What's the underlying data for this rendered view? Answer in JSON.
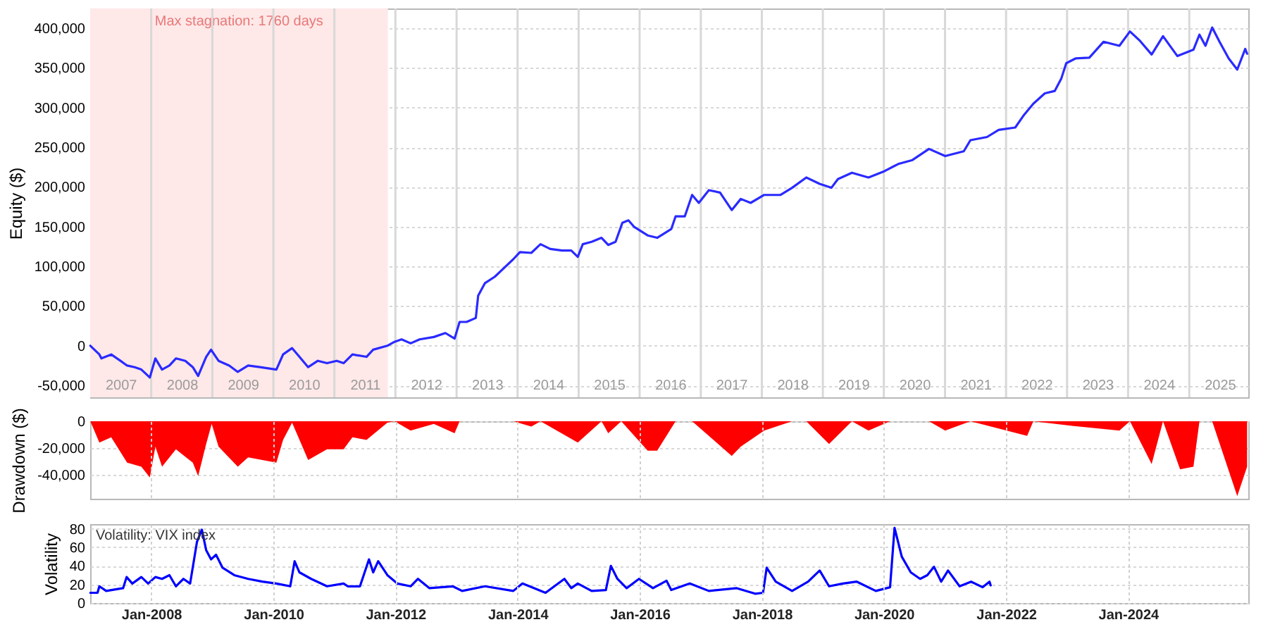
{
  "chart_data": [
    {
      "type": "line",
      "ylabel": "Equity ($)",
      "grid": true,
      "xlim": [
        "2007-01-01",
        "2025-12-20"
      ],
      "ylim": [
        -65000,
        425000
      ],
      "yticks": [
        {
          "value": -50000,
          "label": "-50,000"
        },
        0,
        {
          "value": 50000,
          "label": "50,000"
        },
        {
          "value": 100000,
          "label": "100,000"
        },
        {
          "value": 150000,
          "label": "150,000"
        },
        {
          "value": 200000,
          "label": "200,000"
        },
        {
          "value": 250000,
          "label": "250,000"
        },
        {
          "value": 300000,
          "label": "300,000"
        },
        {
          "value": 350000,
          "label": "350,000"
        },
        {
          "value": 400000,
          "label": "400,000"
        }
      ],
      "xticks": [
        {
          "value": "2007-07-02",
          "label": "2007"
        },
        {
          "value": "2008-01-01",
          "label": null
        },
        {
          "value": "2008-07-02",
          "label": "2008"
        },
        {
          "value": "2009-01-01",
          "label": null
        },
        {
          "value": "2009-07-02",
          "label": "2009"
        },
        {
          "value": "2010-01-01",
          "label": null
        },
        {
          "value": "2010-07-02",
          "label": "2010"
        },
        {
          "value": "2011-01-01",
          "label": null
        },
        {
          "value": "2011-07-02",
          "label": "2011"
        },
        {
          "value": "2012-01-01",
          "label": null
        },
        {
          "value": "2012-07-02",
          "label": "2012"
        },
        {
          "value": "2013-01-01",
          "label": null
        },
        {
          "value": "2013-07-02",
          "label": "2013"
        },
        {
          "value": "2014-01-01",
          "label": null
        },
        {
          "value": "2014-07-02",
          "label": "2014"
        },
        {
          "value": "2015-01-01",
          "label": null
        },
        {
          "value": "2015-07-02",
          "label": "2015"
        },
        {
          "value": "2016-01-01",
          "label": null
        },
        {
          "value": "2016-07-02",
          "label": "2016"
        },
        {
          "value": "2017-01-01",
          "label": null
        },
        {
          "value": "2017-07-02",
          "label": "2017"
        },
        {
          "value": "2018-01-01",
          "label": null
        },
        {
          "value": "2018-07-02",
          "label": "2018"
        },
        {
          "value": "2019-01-01",
          "label": null
        },
        {
          "value": "2019-07-02",
          "label": "2019"
        },
        {
          "value": "2020-01-01",
          "label": null
        },
        {
          "value": "2020-07-02",
          "label": "2020"
        },
        {
          "value": "2021-01-01",
          "label": null
        },
        {
          "value": "2021-07-02",
          "label": "2021"
        },
        {
          "value": "2022-01-01",
          "label": null
        },
        {
          "value": "2022-07-02",
          "label": "2022"
        },
        {
          "value": "2023-01-01",
          "label": null
        },
        {
          "value": "2023-07-02",
          "label": "2023"
        },
        {
          "value": "2024-01-01",
          "label": null
        },
        {
          "value": "2024-07-02",
          "label": "2024"
        },
        {
          "value": "2025-01-01",
          "label": null
        },
        {
          "value": "2025-07-02",
          "label": "2025"
        }
      ],
      "bands": [
        {
          "axis": "x",
          "from": "2007-01-01",
          "to": "2011-11-17",
          "label": "Max stagnation: 1760 days",
          "color": "#ffe8e8"
        }
      ],
      "series": [
        {
          "color": "#2a2aff",
          "x": [
            "2007-01-02",
            "2007-02-25",
            "2007-03-09",
            "2007-05-07",
            "2007-07-01",
            "2007-08-10",
            "2007-09-24",
            "2007-11-03",
            "2007-12-24",
            "2008-01-26",
            "2008-03-06",
            "2008-04-19",
            "2008-05-28",
            "2008-07-23",
            "2008-09-06",
            "2008-10-08",
            "2008-11-25",
            "2008-12-24",
            "2009-02-07",
            "2009-04-12",
            "2009-06-02",
            "2009-08-03",
            "2009-10-12",
            "2010-01-19",
            "2010-02-28",
            "2010-04-23",
            "2010-06-06",
            "2010-07-28",
            "2010-09-24",
            "2010-11-18",
            "2011-01-15",
            "2011-02-25",
            "2011-04-19",
            "2011-07-12",
            "2011-08-21",
            "2011-11-14",
            "2011-12-27",
            "2012-02-07",
            "2012-04-01",
            "2012-05-25",
            "2012-08-18",
            "2012-10-26",
            "2012-12-20",
            "2013-01-19",
            "2013-03-02",
            "2013-04-26",
            "2013-05-10",
            "2013-06-20",
            "2013-08-18",
            "2013-10-12",
            "2013-12-06",
            "2014-01-15",
            "2014-03-24",
            "2014-05-18",
            "2014-07-15",
            "2014-09-24",
            "2014-11-18",
            "2014-12-27",
            "2015-01-26",
            "2015-03-20",
            "2015-05-18",
            "2015-06-27",
            "2015-08-10",
            "2015-09-20",
            "2015-10-26",
            "2015-11-28",
            "2016-02-18",
            "2016-04-15",
            "2016-07-08",
            "2016-08-03",
            "2016-09-27",
            "2016-11-10",
            "2016-12-20",
            "2017-02-18",
            "2017-04-26",
            "2017-07-05",
            "2017-08-28",
            "2017-10-26",
            "2018-01-15",
            "2018-04-23",
            "2018-07-01",
            "2018-09-24",
            "2018-12-13",
            "2019-02-21",
            "2019-04-01",
            "2019-06-24",
            "2019-10-01",
            "2020-01-05",
            "2020-03-27",
            "2020-06-20",
            "2020-09-27",
            "2021-01-02",
            "2021-04-23",
            "2021-06-02",
            "2021-09-09",
            "2021-11-18",
            "2022-02-25",
            "2022-04-19",
            "2022-06-13",
            "2022-08-21",
            "2022-10-19",
            "2022-11-28",
            "2022-12-27",
            "2023-02-21",
            "2023-05-14",
            "2023-08-07",
            "2023-11-10",
            "2024-01-12",
            "2024-03-13",
            "2024-05-21",
            "2024-07-28",
            "2024-10-22",
            "2025-01-26",
            "2025-03-03",
            "2025-04-08",
            "2025-05-18",
            "2025-07-01",
            "2025-08-25",
            "2025-10-15",
            "2025-12-02",
            "2025-12-13"
          ],
          "values": [
            0,
            -11000,
            -16000,
            -11000,
            -19000,
            -25000,
            -27000,
            -30000,
            -40000,
            -16000,
            -30000,
            -25000,
            -16000,
            -19000,
            -27000,
            -38000,
            -14000,
            -5000,
            -19000,
            -25000,
            -33000,
            -25000,
            -27000,
            -30000,
            -11000,
            -3000,
            -14000,
            -27000,
            -19000,
            -22000,
            -19000,
            -22000,
            -11000,
            -14000,
            -5000,
            0,
            5000,
            8000,
            3000,
            8000,
            11000,
            16000,
            9000,
            30000,
            30000,
            35000,
            63000,
            79000,
            87000,
            98000,
            109000,
            118000,
            117000,
            128000,
            122000,
            120000,
            120000,
            112000,
            128000,
            131000,
            136000,
            127000,
            131000,
            155000,
            158000,
            150000,
            139000,
            136000,
            147000,
            163000,
            163000,
            190000,
            180000,
            196000,
            193000,
            171000,
            185000,
            180000,
            190000,
            190000,
            199000,
            212000,
            204000,
            199000,
            210000,
            218000,
            212000,
            220000,
            229000,
            234000,
            248000,
            239000,
            245000,
            259000,
            263000,
            272000,
            275000,
            291000,
            305000,
            318000,
            321000,
            337000,
            356000,
            362000,
            363000,
            383000,
            378000,
            396000,
            384000,
            367000,
            390000,
            365000,
            373000,
            392000,
            378000,
            401000,
            383000,
            362000,
            348000,
            374000,
            368000
          ]
        }
      ]
    },
    {
      "type": "area",
      "ylabel": "Drawdown ($)",
      "grid": true,
      "tick_labels": "y",
      "xlim": [
        "2007-01-01",
        "2025-12-20"
      ],
      "ylim": [
        -58000,
        0
      ],
      "yticks": [
        {
          "value": -40000,
          "label": "-40,000"
        },
        {
          "value": -20000,
          "label": "-20,000"
        },
        0
      ],
      "xticks": [
        {
          "value": "2008-01-01",
          "label": null
        },
        {
          "value": "2010-01-01",
          "label": null
        },
        {
          "value": "2012-01-01",
          "label": null
        },
        {
          "value": "2014-01-01",
          "label": null
        },
        {
          "value": "2016-01-01",
          "label": null
        },
        {
          "value": "2018-01-01",
          "label": null
        },
        {
          "value": "2020-01-01",
          "label": null
        },
        {
          "value": "2022-01-01",
          "label": null
        },
        {
          "value": "2024-01-01",
          "label": null
        }
      ],
      "series": [
        {
          "color": "#ff0000",
          "x": [
            "2007-01-02",
            "2007-02-25",
            "2007-05-07",
            "2007-08-10",
            "2007-11-03",
            "2007-12-24",
            "2008-01-26",
            "2008-03-06",
            "2008-05-28",
            "2008-09-06",
            "2008-10-08",
            "2008-11-25",
            "2008-12-28",
            "2009-02-07",
            "2009-06-02",
            "2009-08-03",
            "2010-01-19",
            "2010-02-28",
            "2010-04-23",
            "2010-07-28",
            "2010-11-18",
            "2011-02-25",
            "2011-04-19",
            "2011-07-12",
            "2011-11-14",
            "2011-12-27",
            "2012-04-01",
            "2012-08-18",
            "2012-12-20",
            "2013-01-19",
            "2013-12-06",
            "2014-03-24",
            "2014-05-18",
            "2014-12-27",
            "2015-05-18",
            "2015-06-27",
            "2015-09-13",
            "2016-02-18",
            "2016-04-15",
            "2016-08-03",
            "2016-11-10",
            "2017-07-05",
            "2017-08-28",
            "2018-01-15",
            "2018-07-01",
            "2018-09-24",
            "2019-02-07",
            "2019-06-24",
            "2019-10-01",
            "2020-02-07",
            "2020-09-27",
            "2021-01-02",
            "2021-06-02",
            "2022-05-07",
            "2022-06-13",
            "2023-03-14",
            "2023-11-10",
            "2024-01-12",
            "2024-05-21",
            "2024-07-28",
            "2024-11-07",
            "2025-01-26",
            "2025-03-03",
            "2025-05-18",
            "2025-10-15",
            "2025-12-13"
          ],
          "values": [
            0,
            -16000,
            -12000,
            -31000,
            -34000,
            -42000,
            -19000,
            -34000,
            -21000,
            -31000,
            -41000,
            -17000,
            -2000,
            -19000,
            -34000,
            -27000,
            -31000,
            -14000,
            -1000,
            -29000,
            -21000,
            -21000,
            -12000,
            -14000,
            -1000,
            0,
            -7000,
            -2000,
            -9000,
            0,
            0,
            -4000,
            0,
            -16000,
            0,
            -9000,
            0,
            -22000,
            -22000,
            0,
            0,
            -26000,
            -19000,
            -7000,
            0,
            0,
            -17000,
            0,
            -7000,
            0,
            0,
            -7000,
            0,
            -11000,
            0,
            -4000,
            -7000,
            0,
            -32000,
            0,
            -36000,
            -34000,
            0,
            0,
            -56000,
            -34000
          ]
        }
      ]
    },
    {
      "type": "line",
      "ylabel": "Volatility",
      "grid": true,
      "annotations": [
        "Volatility: VIX index"
      ],
      "xlim": [
        "2007-01-01",
        "2025-12-20"
      ],
      "ylim": [
        0,
        85
      ],
      "yticks": [
        0,
        20,
        40,
        60,
        80
      ],
      "xticks": [
        {
          "value": "2008-01-01",
          "label": "Jan-2008"
        },
        {
          "value": "2010-01-01",
          "label": "Jan-2010"
        },
        {
          "value": "2012-01-01",
          "label": "Jan-2012"
        },
        {
          "value": "2014-01-01",
          "label": "Jan-2014"
        },
        {
          "value": "2016-01-01",
          "label": "Jan-2016"
        },
        {
          "value": "2018-01-01",
          "label": "Jan-2018"
        },
        {
          "value": "2020-01-01",
          "label": "Jan-2020"
        },
        {
          "value": "2022-01-01",
          "label": "Jan-2022"
        },
        {
          "value": "2024-01-01",
          "label": "Jan-2024"
        }
      ],
      "series": [
        {
          "color": "#0000ff",
          "x": [
            "2007-01-02",
            "2007-02-14",
            "2007-02-25",
            "2007-04-07",
            "2007-07-17",
            "2007-08-07",
            "2007-09-10",
            "2007-11-03",
            "2007-12-14",
            "2008-01-26",
            "2008-03-06",
            "2008-04-19",
            "2008-05-28",
            "2008-07-12",
            "2008-08-21",
            "2008-10-01",
            "2008-10-30",
            "2008-11-25",
            "2008-12-24",
            "2009-01-23",
            "2009-03-03",
            "2009-05-12",
            "2009-08-03",
            "2009-10-27",
            "2010-01-19",
            "2010-04-12",
            "2010-05-08",
            "2010-06-06",
            "2010-08-15",
            "2010-11-18",
            "2011-02-25",
            "2011-03-22",
            "2011-06-03",
            "2011-07-27",
            "2011-08-21",
            "2011-09-20",
            "2011-11-14",
            "2012-01-12",
            "2012-04-01",
            "2012-05-15",
            "2012-07-23",
            "2012-12-09",
            "2013-02-03",
            "2013-06-20",
            "2013-12-06",
            "2014-01-30",
            "2014-06-17",
            "2014-10-08",
            "2014-11-18",
            "2014-12-27",
            "2015-03-20",
            "2015-06-13",
            "2015-07-13",
            "2015-08-21",
            "2015-10-15",
            "2015-12-28",
            "2016-03-21",
            "2016-06-10",
            "2016-07-08",
            "2016-10-27",
            "2017-02-18",
            "2017-08-04",
            "2017-11-22",
            "2018-01-08",
            "2018-01-30",
            "2018-03-25",
            "2018-07-01",
            "2018-10-05",
            "2018-12-13",
            "2019-02-07",
            "2019-05-01",
            "2019-07-23",
            "2019-11-14",
            "2020-02-07",
            "2020-03-05",
            "2020-04-17",
            "2020-06-10",
            "2020-08-05",
            "2020-09-17",
            "2020-10-27",
            "2020-12-09",
            "2021-01-19",
            "2021-03-29",
            "2021-06-06",
            "2021-08-14",
            "2021-09-24",
            "2021-10-01"
          ],
          "values": [
            11,
            11,
            18,
            13,
            16,
            28,
            21,
            28,
            21,
            28,
            26,
            30,
            18,
            26,
            21,
            66,
            79,
            57,
            47,
            52,
            38,
            30,
            26,
            23,
            21,
            18,
            45,
            33,
            26,
            18,
            21,
            18,
            18,
            47,
            33,
            45,
            30,
            21,
            18,
            26,
            16,
            18,
            13,
            18,
            13,
            21,
            11,
            26,
            16,
            21,
            13,
            14,
            40,
            26,
            16,
            26,
            16,
            24,
            14,
            21,
            13,
            16,
            10,
            11,
            38,
            23,
            13,
            23,
            35,
            18,
            21,
            23,
            13,
            17,
            81,
            50,
            33,
            26,
            30,
            39,
            23,
            35,
            18,
            23,
            17,
            23,
            19
          ]
        }
      ]
    }
  ]
}
